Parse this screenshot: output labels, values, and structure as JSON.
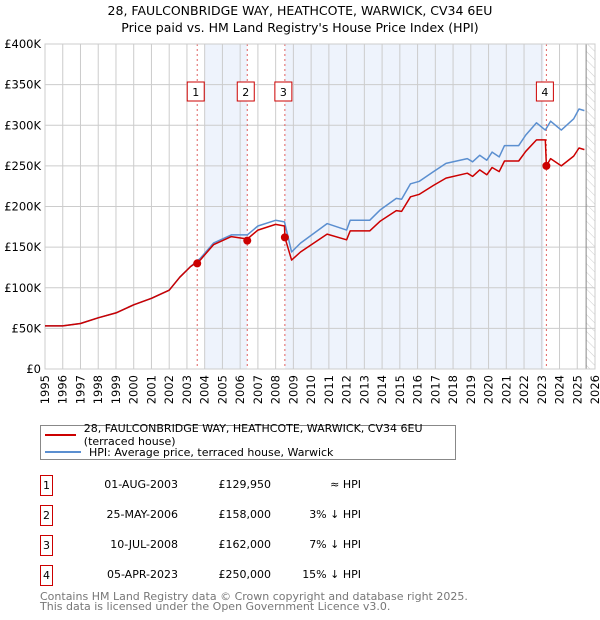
{
  "chart_data": {
    "type": "line",
    "title": "28, FAULCONBRIDGE WAY, HEATHCOTE, WARWICK, CV34 6EU",
    "subtitle": "Price paid vs. HM Land Registry's House Price Index (HPI)",
    "xlabel": "",
    "ylabel": "",
    "xlim": [
      1995,
      2026
    ],
    "ylim": [
      0,
      400000
    ],
    "x_ticks": [
      "1995",
      "1996",
      "1997",
      "1998",
      "1999",
      "2000",
      "2001",
      "2002",
      "2003",
      "2004",
      "2005",
      "2006",
      "2007",
      "2008",
      "2009",
      "2010",
      "2011",
      "2012",
      "2013",
      "2014",
      "2015",
      "2016",
      "2017",
      "2018",
      "2019",
      "2020",
      "2021",
      "2022",
      "2023",
      "2024",
      "2025",
      "2026"
    ],
    "y_ticks": [
      {
        "value": 0,
        "label": "£0"
      },
      {
        "value": 50000,
        "label": "£50K"
      },
      {
        "value": 100000,
        "label": "£100K"
      },
      {
        "value": 150000,
        "label": "£150K"
      },
      {
        "value": 200000,
        "label": "£200K"
      },
      {
        "value": 250000,
        "label": "£250K"
      },
      {
        "value": 300000,
        "label": "£300K"
      },
      {
        "value": 350000,
        "label": "£350K"
      },
      {
        "value": 400000,
        "label": "£400K"
      }
    ],
    "grid": true,
    "future_hatch_from": 2025.5,
    "series": [
      {
        "name": "28, FAULCONBRIDGE WAY, HEATHCOTE, WARWICK, CV34 6EU (terraced house)",
        "color": "#cc0000",
        "x": [
          1995,
          1996,
          1997,
          1998,
          1999,
          2000,
          2001,
          2002,
          2002.6,
          2003.2,
          2003.75,
          2004.5,
          2005.5,
          2006.4,
          2007,
          2008,
          2008.5,
          2008.52,
          2008.9,
          2009.4,
          2010.9,
          2012.0,
          2012.2,
          2013.3,
          2013.9,
          2014.8,
          2015.1,
          2015.6,
          2016.1,
          2016.9,
          2017.6,
          2018.8,
          2019.1,
          2019.5,
          2019.9,
          2020.2,
          2020.6,
          2020.9,
          2021.7,
          2022.1,
          2022.7,
          2023.2,
          2023.26,
          2023.5,
          2024.1,
          2024.8,
          2025.1,
          2025.4
        ],
        "y": [
          53000,
          53000,
          56000,
          63000,
          69000,
          79000,
          87000,
          97000,
          113000,
          126000,
          134000,
          153000,
          163000,
          160000,
          171000,
          178000,
          176000,
          162000,
          134000,
          144000,
          166000,
          159000,
          170000,
          170000,
          182000,
          195000,
          194000,
          212000,
          215000,
          226000,
          235000,
          241000,
          237000,
          245000,
          239000,
          248000,
          243000,
          256000,
          256000,
          268000,
          282000,
          282000,
          250000,
          259000,
          250000,
          262000,
          272000,
          270000
        ]
      },
      {
        "name": "HPI: Average price, terraced house, Warwick",
        "color": "#5b8fd0",
        "x": [
          1995,
          1996,
          1997,
          1998,
          1999,
          2000,
          2001,
          2002,
          2002.6,
          2003.2,
          2003.75,
          2004.5,
          2005.5,
          2006.4,
          2007,
          2008,
          2008.5,
          2008.9,
          2009.4,
          2010.9,
          2012.0,
          2012.2,
          2013.3,
          2013.9,
          2014.8,
          2015.1,
          2015.6,
          2016.1,
          2016.9,
          2017.6,
          2018.8,
          2019.1,
          2019.5,
          2019.9,
          2020.2,
          2020.6,
          2020.9,
          2021.7,
          2022.1,
          2022.7,
          2023.2,
          2023.5,
          2024.1,
          2024.8,
          2025.1,
          2025.4
        ],
        "y": [
          53000,
          53000,
          56000,
          63000,
          69000,
          79000,
          87000,
          97000,
          113000,
          126000,
          136000,
          155000,
          165000,
          165000,
          176000,
          183000,
          181000,
          144000,
          155000,
          179000,
          171000,
          183000,
          183000,
          196000,
          210000,
          209000,
          228000,
          231000,
          243000,
          253000,
          259000,
          255000,
          263000,
          257000,
          267000,
          261000,
          275000,
          275000,
          288000,
          303000,
          294000,
          305000,
          294000,
          308000,
          320000,
          318000
        ]
      }
    ],
    "sales": [
      {
        "label": "1",
        "x": 2003.58,
        "y": 129950
      },
      {
        "label": "2",
        "x": 2006.4,
        "y": 158000
      },
      {
        "label": "3",
        "x": 2008.52,
        "y": 162000
      },
      {
        "label": "4",
        "x": 2023.26,
        "y": 250000
      }
    ],
    "shaded_ranges": [
      [
        2004.0,
        2006.4
      ],
      [
        2008.52,
        2023.1
      ]
    ]
  },
  "legend": {
    "property": "28, FAULCONBRIDGE WAY, HEATHCOTE, WARWICK, CV34 6EU (terraced house)",
    "hpi": "HPI: Average price, terraced house, Warwick"
  },
  "transactions": [
    {
      "num": "1",
      "date": "01-AUG-2003",
      "price": "£129,950",
      "hpi": "≈ HPI"
    },
    {
      "num": "2",
      "date": "25-MAY-2006",
      "price": "£158,000",
      "hpi": "3% ↓ HPI"
    },
    {
      "num": "3",
      "date": "10-JUL-2008",
      "price": "£162,000",
      "hpi": "7% ↓ HPI"
    },
    {
      "num": "4",
      "date": "05-APR-2023",
      "price": "£250,000",
      "hpi": "15% ↓ HPI"
    }
  ],
  "footer": {
    "line1": "Contains HM Land Registry data © Crown copyright and database right 2025.",
    "line2": "This data is licensed under the Open Government Licence v3.0."
  }
}
